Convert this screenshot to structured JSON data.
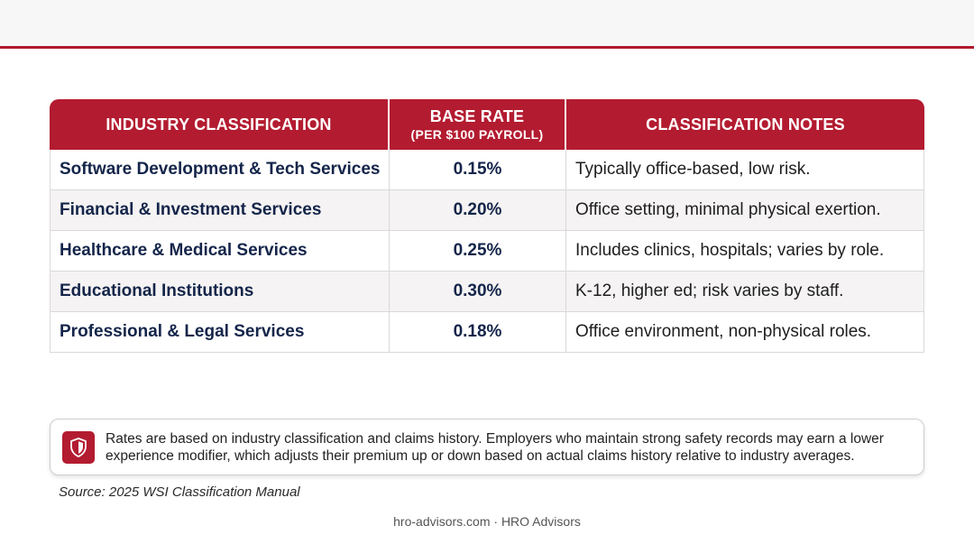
{
  "table": {
    "headers": {
      "industry": "INDUSTRY CLASSIFICATION",
      "rate": "BASE RATE",
      "rate_sub": "(PER $100 PAYROLL)",
      "notes": "CLASSIFICATION NOTES"
    },
    "rows": [
      {
        "industry": "Software Development & Tech Services",
        "rate": "0.15%",
        "notes": "Typically office-based, low risk."
      },
      {
        "industry": "Financial & Investment Services",
        "rate": "0.20%",
        "notes": "Office setting, minimal physical exertion."
      },
      {
        "industry": "Healthcare & Medical Services",
        "rate": "0.25%",
        "notes": "Includes clinics, hospitals; varies by role."
      },
      {
        "industry": "Educational Institutions",
        "rate": "0.30%",
        "notes": "K-12, higher ed; risk varies by staff."
      },
      {
        "industry": "Professional & Legal Services",
        "rate": "0.18%",
        "notes": "Office environment, non-physical roles."
      }
    ]
  },
  "notice": {
    "icon": "shield-icon",
    "text": "Rates are based on industry classification and claims history. Employers who maintain strong safety records may earn a lower experience modifier, which adjusts their premium up or down based on actual claims history relative to industry averages."
  },
  "source": "Source: 2025 WSI Classification Manual",
  "footer": "hro-advisors.com · HRO Advisors",
  "colors": {
    "accent": "#b31b30",
    "text_dark": "#14254a"
  }
}
